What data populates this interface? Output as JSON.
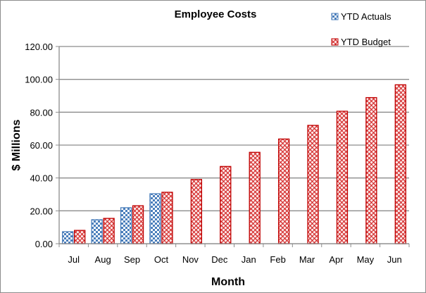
{
  "chart_data": {
    "type": "bar",
    "title": "Employee Costs",
    "xlabel": "Month",
    "ylabel": "$ Millions",
    "categories": [
      "Jul",
      "Aug",
      "Sep",
      "Oct",
      "Nov",
      "Dec",
      "Jan",
      "Feb",
      "Mar",
      "Apr",
      "May",
      "Jun"
    ],
    "series": [
      {
        "name": "YTD Actuals",
        "color": "#4a7ebb",
        "pattern": "checkerboard",
        "values": [
          7.3,
          14.6,
          21.9,
          30.4,
          null,
          null,
          null,
          null,
          null,
          null,
          null,
          null
        ]
      },
      {
        "name": "YTD Budget",
        "color": "#c00000",
        "pattern": "weave",
        "values": [
          8.1,
          15.4,
          23.1,
          31.3,
          39.1,
          47.0,
          55.6,
          63.7,
          72.0,
          80.6,
          88.9,
          96.7
        ]
      }
    ],
    "ylim": [
      0,
      120
    ],
    "yticks": [
      "0.00",
      "20.00",
      "40.00",
      "60.00",
      "80.00",
      "100.00",
      "120.00"
    ],
    "grid": true,
    "legend": "top-right"
  }
}
